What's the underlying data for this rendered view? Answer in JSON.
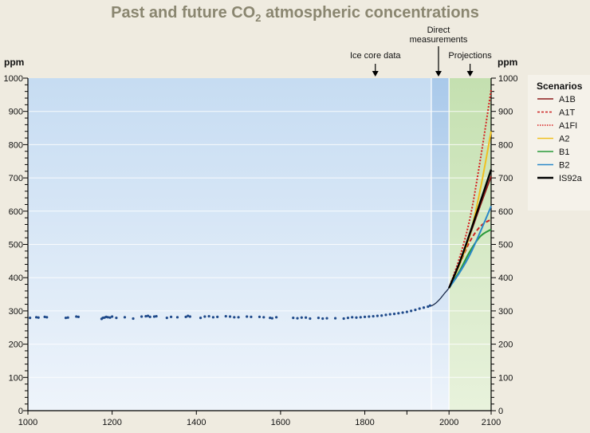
{
  "chart_data": {
    "type": "line",
    "title": "Past and future CO",
    "title_sub": "2",
    "title_rest": " atmospheric concentrations",
    "ylabel_left": "ppm",
    "ylabel_right": "ppm",
    "xlim": [
      1000,
      2100
    ],
    "ylim": [
      0,
      1000
    ],
    "x_ticks": [
      1000,
      1200,
      1400,
      1600,
      1800,
      2000,
      2100
    ],
    "x_minor_ticks": [
      1900
    ],
    "y_ticks": [
      0,
      100,
      200,
      300,
      400,
      500,
      600,
      700,
      800,
      900,
      1000
    ],
    "y_minor_step": 20,
    "grid": true,
    "regions": [
      {
        "name": "Ice core data",
        "from": 1000,
        "to": 1958,
        "color": "#c6dcf2"
      },
      {
        "name": "Direct measurements",
        "from": 1958,
        "to": 2000,
        "color": "#a9c9ea"
      },
      {
        "name": "Projections",
        "from": 2000,
        "to": 2100,
        "color": "#c4e0b0"
      }
    ],
    "annotations": [
      {
        "text": "Ice core data",
        "x": 1825
      },
      {
        "text": "Direct",
        "text2": "measurements",
        "x": 1975
      },
      {
        "text": "Projections",
        "x": 2050
      }
    ],
    "ice_core": {
      "x": [
        1005,
        1020,
        1025,
        1040,
        1045,
        1090,
        1095,
        1115,
        1120,
        1175,
        1178,
        1182,
        1186,
        1190,
        1195,
        1200,
        1210,
        1230,
        1250,
        1270,
        1280,
        1285,
        1290,
        1300,
        1305,
        1330,
        1340,
        1355,
        1375,
        1380,
        1385,
        1410,
        1420,
        1430,
        1440,
        1450,
        1470,
        1480,
        1490,
        1500,
        1520,
        1530,
        1550,
        1560,
        1575,
        1580,
        1590,
        1630,
        1640,
        1650,
        1660,
        1670,
        1690,
        1700,
        1710,
        1730,
        1750,
        1760,
        1770,
        1780,
        1790,
        1800,
        1810,
        1820,
        1830,
        1840,
        1850,
        1860,
        1870,
        1880,
        1890,
        1900,
        1910,
        1920,
        1930,
        1940,
        1950,
        1955
      ],
      "y": [
        279,
        281,
        280,
        282,
        281,
        279,
        280,
        283,
        282,
        276,
        279,
        280,
        282,
        281,
        280,
        283,
        279,
        281,
        277,
        283,
        284,
        285,
        282,
        283,
        284,
        279,
        282,
        281,
        282,
        285,
        283,
        279,
        283,
        284,
        281,
        282,
        284,
        283,
        281,
        281,
        283,
        282,
        282,
        281,
        279,
        278,
        281,
        279,
        278,
        280,
        280,
        277,
        279,
        277,
        278,
        278,
        277,
        279,
        281,
        280,
        281,
        282,
        283,
        284,
        285,
        286,
        288,
        290,
        291,
        293,
        295,
        297,
        300,
        303,
        307,
        310,
        313,
        316
      ]
    },
    "direct": {
      "x": [
        1958,
        1965,
        1970,
        1975,
        1980,
        1985,
        1990,
        1995,
        2000
      ],
      "y": [
        315,
        320,
        325,
        331,
        338,
        346,
        354,
        361,
        369
      ]
    },
    "series": [
      {
        "name": "A1B",
        "color": "#8b1a1a",
        "dash": "solid",
        "x": [
          2000,
          2025,
          2050,
          2075,
          2100
        ],
        "y": [
          369,
          440,
          530,
          620,
          705
        ]
      },
      {
        "name": "A1T",
        "color": "#cc2222",
        "dash": "dashed",
        "x": [
          2000,
          2025,
          2050,
          2075,
          2100
        ],
        "y": [
          369,
          440,
          510,
          555,
          575
        ]
      },
      {
        "name": "A1FI",
        "color": "#d62020",
        "dash": "dotted",
        "x": [
          2000,
          2025,
          2050,
          2075,
          2100
        ],
        "y": [
          369,
          460,
          580,
          760,
          965
        ]
      },
      {
        "name": "A2",
        "color": "#f0c020",
        "dash": "solid",
        "x": [
          2000,
          2025,
          2050,
          2075,
          2100
        ],
        "y": [
          369,
          440,
          530,
          670,
          840
        ]
      },
      {
        "name": "B1",
        "color": "#2a9a3a",
        "dash": "solid",
        "x": [
          2000,
          2025,
          2050,
          2075,
          2100
        ],
        "y": [
          369,
          420,
          480,
          525,
          545
        ]
      },
      {
        "name": "B2",
        "color": "#2a88c8",
        "dash": "solid",
        "x": [
          2000,
          2025,
          2050,
          2075,
          2100
        ],
        "y": [
          369,
          415,
          470,
          540,
          615
        ]
      },
      {
        "name": "IS92a",
        "color": "#000000",
        "dash": "solid",
        "x": [
          2000,
          2025,
          2050,
          2075,
          2100
        ],
        "y": [
          369,
          445,
          535,
          630,
          725
        ]
      }
    ],
    "legend": {
      "title": "Scenarios",
      "placement": "right"
    }
  },
  "legend_entries": [
    "A1B",
    "A1T",
    "A1FI",
    "A2",
    "B1",
    "B2",
    "IS92a"
  ]
}
